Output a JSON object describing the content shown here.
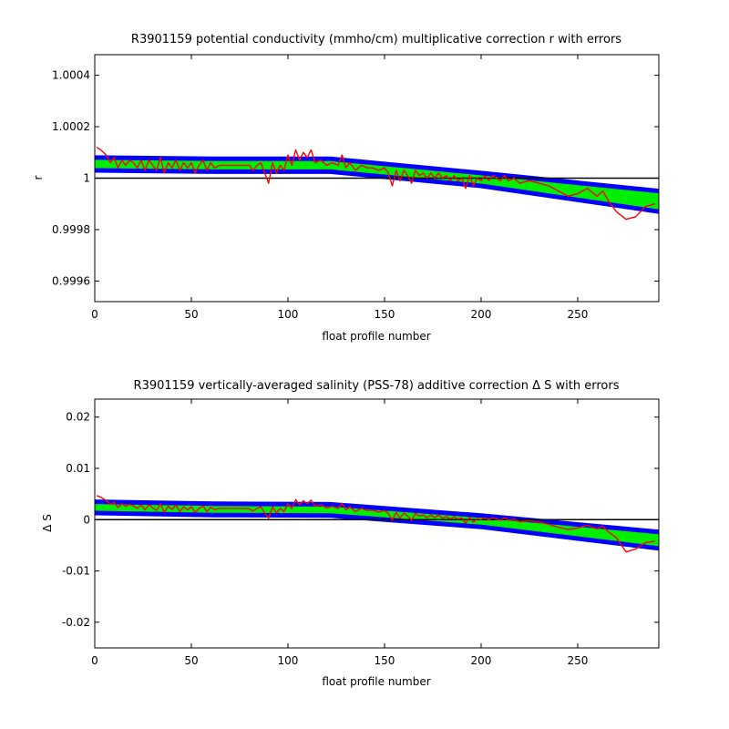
{
  "chart_data": [
    {
      "type": "line",
      "title": "R3901159 potential conductivity (mmho/cm) multiplicative correction r with errors",
      "xlabel": "float profile number",
      "ylabel": "r",
      "xlim": [
        0,
        292
      ],
      "ylim": [
        0.99952,
        1.00048
      ],
      "xticks": [
        0,
        50,
        100,
        150,
        200,
        250
      ],
      "xtick_labels": [
        "0",
        "50",
        "100",
        "150",
        "200",
        "250"
      ],
      "yticks": [
        0.9996,
        0.9998,
        1,
        1.0002,
        1.0004
      ],
      "ytick_labels": [
        "0.9996",
        "0.9998",
        "1",
        "1.0002",
        "1.0004"
      ],
      "reference_line": 1,
      "grid": false,
      "legend": "none",
      "colors": {
        "fit": "#00ee00",
        "error_band": "#0000ff",
        "profile": "#ff0000",
        "reference": "#000000"
      },
      "fit": {
        "x": [
          0,
          62,
          122,
          200,
          292
        ],
        "center": [
          1.000055,
          1.00005,
          1.00005,
          0.999995,
          0.99991
        ],
        "half_width": [
          2.5e-05,
          2.5e-05,
          2.5e-05,
          2.5e-05,
          4e-05
        ]
      },
      "series": [
        {
          "values_x": [
            1,
            3,
            6,
            8,
            10,
            12,
            14,
            16,
            18,
            20,
            22,
            24,
            26,
            28,
            30,
            32,
            34,
            36,
            38,
            40,
            42,
            44,
            46,
            48,
            50,
            52,
            54,
            56,
            58,
            60,
            62,
            65,
            68,
            71,
            74,
            77,
            80,
            82,
            84,
            86,
            88,
            90,
            92,
            94,
            96,
            98,
            100,
            102,
            104,
            106,
            108,
            110,
            112,
            114,
            117,
            120,
            123,
            126,
            128,
            130,
            132,
            135,
            138,
            141,
            144,
            147,
            150,
            152,
            154,
            156,
            158,
            160,
            162,
            164,
            166,
            168,
            170,
            172,
            174,
            176,
            178,
            180,
            182,
            184,
            186,
            188,
            190,
            192,
            194,
            196,
            198,
            200,
            202,
            204,
            206,
            208,
            210,
            212,
            214,
            217,
            220,
            225,
            230,
            235,
            240,
            245,
            250,
            255,
            260,
            263,
            266,
            270,
            275,
            280,
            285,
            290
          ],
          "values_y": [
            1.00012,
            1.00011,
            1.00009,
            1.00006,
            1.00008,
            1.00004,
            1.00007,
            1.00005,
            1.00007,
            1.00006,
            1.00004,
            1.00007,
            1.00003,
            1.00007,
            1.00005,
            1.00003,
            1.00008,
            1.00002,
            1.00006,
            1.00004,
            1.00007,
            1.00003,
            1.00006,
            1.00004,
            1.00006,
            1.00002,
            1.00005,
            1.00007,
            1.00003,
            1.00006,
            1.00004,
            1.00005,
            1.00005,
            1.00005,
            1.00005,
            1.00005,
            1.00005,
            1.00003,
            1.00005,
            1.00006,
            1.00002,
            0.99998,
            1.00006,
            1.00002,
            1.00005,
            1.00003,
            1.00009,
            1.00005,
            1.00011,
            1.00007,
            1.0001,
            1.00008,
            1.00011,
            1.00006,
            1.00007,
            1.00005,
            1.00006,
            1.00005,
            1.00009,
            1.00004,
            1.00006,
            1.00003,
            1.00005,
            1.00004,
            1.00004,
            1.00003,
            1.00004,
            1.00002,
            0.99997,
            1.00003,
            0.99999,
            1.00003,
            1.00001,
            0.99998,
            1.00003,
            1.00001,
            1.00002,
            1.0,
            1.00002,
            1.0,
            1.00002,
            1.0,
            1.00001,
            0.99999,
            1.00001,
            0.99999,
            1.0,
            0.99996,
            1.00001,
            0.99997,
            1.0,
            0.99999,
            1.00001,
            0.99999,
            1.00001,
            1.0,
            0.99999,
            1.00001,
            0.99999,
            1.0,
            0.99998,
            0.99999,
            0.99998,
            0.99997,
            0.99995,
            0.99993,
            0.99994,
            0.99996,
            0.99993,
            0.99995,
            0.99991,
            0.99987,
            0.99984,
            0.99985,
            0.99989,
            0.9999
          ]
        }
      ]
    },
    {
      "type": "line",
      "title": "R3901159 vertically-averaged salinity (PSS-78) additive correction Δ S with errors",
      "xlabel": "float profile number",
      "ylabel": "Δ S",
      "xlim": [
        0,
        292
      ],
      "ylim": [
        -0.025,
        0.0235
      ],
      "xticks": [
        0,
        50,
        100,
        150,
        200,
        250
      ],
      "xtick_labels": [
        "0",
        "50",
        "100",
        "150",
        "200",
        "250"
      ],
      "yticks": [
        -0.02,
        -0.01,
        0,
        0.01,
        0.02
      ],
      "ytick_labels": [
        "-0.02",
        "-0.01",
        "0",
        "0.01",
        "0.02"
      ],
      "reference_line": 0,
      "grid": false,
      "legend": "none",
      "colors": {
        "fit": "#00ee00",
        "error_band": "#0000ff",
        "profile": "#ff0000",
        "reference": "#000000"
      },
      "fit": {
        "x": [
          0,
          62,
          122,
          200,
          292
        ],
        "center": [
          0.0024,
          0.002,
          0.0019,
          -0.0003,
          -0.004
        ],
        "half_width": [
          0.0011,
          0.0011,
          0.0011,
          0.0011,
          0.0016
        ]
      },
      "series": [
        {
          "values_x": [
            1,
            3,
            6,
            8,
            10,
            12,
            14,
            16,
            18,
            20,
            22,
            24,
            26,
            28,
            30,
            32,
            34,
            36,
            38,
            40,
            42,
            44,
            46,
            48,
            50,
            52,
            54,
            56,
            58,
            60,
            62,
            65,
            68,
            71,
            74,
            77,
            80,
            82,
            84,
            86,
            88,
            90,
            92,
            94,
            96,
            98,
            100,
            102,
            104,
            106,
            108,
            110,
            112,
            114,
            117,
            120,
            123,
            126,
            128,
            130,
            132,
            135,
            138,
            141,
            144,
            147,
            150,
            152,
            154,
            156,
            158,
            160,
            162,
            164,
            166,
            168,
            170,
            172,
            174,
            176,
            178,
            180,
            182,
            184,
            186,
            188,
            190,
            192,
            194,
            196,
            198,
            200,
            202,
            204,
            206,
            208,
            210,
            212,
            214,
            217,
            220,
            225,
            230,
            235,
            240,
            245,
            250,
            255,
            260,
            263,
            266,
            270,
            275,
            280,
            285,
            290
          ],
          "values_y": [
            0.0047,
            0.0044,
            0.0037,
            0.003,
            0.0034,
            0.0024,
            0.0031,
            0.0026,
            0.003,
            0.0027,
            0.0022,
            0.0029,
            0.0019,
            0.0029,
            0.0023,
            0.0018,
            0.0031,
            0.0014,
            0.0026,
            0.002,
            0.0028,
            0.0016,
            0.0025,
            0.0019,
            0.0025,
            0.0014,
            0.0022,
            0.0027,
            0.0016,
            0.0024,
            0.002,
            0.0022,
            0.0022,
            0.0022,
            0.0022,
            0.0022,
            0.0021,
            0.0017,
            0.0022,
            0.0025,
            0.0013,
            0.0003,
            0.0025,
            0.0013,
            0.0022,
            0.0016,
            0.0031,
            0.0022,
            0.0039,
            0.0029,
            0.0037,
            0.0031,
            0.0038,
            0.0026,
            0.0029,
            0.0023,
            0.0026,
            0.0022,
            0.0032,
            0.0019,
            0.0025,
            0.0016,
            0.0022,
            0.0018,
            0.0018,
            0.0015,
            0.0018,
            0.0012,
            -0.0001,
            0.0014,
            0.0003,
            0.0013,
            0.0007,
            -0.0001,
            0.0012,
            0.0007,
            0.0009,
            0.0004,
            0.0009,
            0.0004,
            0.0009,
            0.0003,
            0.0006,
            0.0001,
            0.0006,
            0.0001,
            0.0003,
            -0.0007,
            0.0005,
            -0.0005,
            0.0002,
            0.0,
            0.0004,
            -0.0001,
            0.0004,
            0.0001,
            -0.0001,
            0.0004,
            -0.0001,
            0.0001,
            -0.0004,
            -0.0002,
            -0.0005,
            -0.0009,
            -0.0015,
            -0.0019,
            -0.0016,
            -0.0011,
            -0.0018,
            -0.0013,
            -0.0024,
            -0.0035,
            -0.0063,
            -0.0057,
            -0.0045,
            -0.0042
          ]
        }
      ]
    }
  ]
}
